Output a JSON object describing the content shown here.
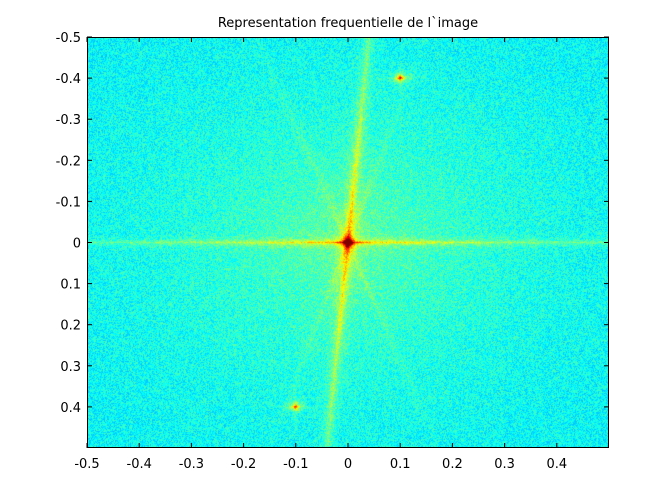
{
  "chart_data": {
    "type": "heatmap",
    "title": "Representation frequentielle de l`image",
    "xlabel": "",
    "ylabel": "",
    "xlim": [
      -0.5,
      0.5
    ],
    "ylim": [
      -0.5,
      0.5
    ],
    "y_axis_direction": "reversed",
    "x_ticks": [
      -0.5,
      -0.4,
      -0.3,
      -0.2,
      -0.1,
      0,
      0.1,
      0.2,
      0.3,
      0.4
    ],
    "x_tick_labels": [
      "-0.5",
      "-0.4",
      "-0.3",
      "-0.2",
      "-0.1",
      "0",
      "0.1",
      "0.2",
      "0.3",
      "0.4"
    ],
    "y_ticks": [
      -0.5,
      -0.4,
      -0.3,
      -0.2,
      -0.1,
      0,
      0.1,
      0.2,
      0.3,
      0.4
    ],
    "y_tick_labels": [
      "-0.5",
      "-0.4",
      "-0.3",
      "-0.2",
      "-0.1",
      "0",
      "0.1",
      "0.2",
      "0.3",
      "0.4"
    ],
    "colormap": "jet",
    "grid": false,
    "features": [
      {
        "kind": "peak",
        "fx": 0.0,
        "fy": 0.0,
        "intensity": 1.0
      },
      {
        "kind": "peak",
        "fx": 0.1,
        "fy": -0.4,
        "intensity": 0.8
      },
      {
        "kind": "peak",
        "fx": -0.1,
        "fy": 0.4,
        "intensity": 0.75
      },
      {
        "kind": "line",
        "fx": 0.0,
        "fy": 0.0,
        "orientation": "horizontal",
        "intensity": 0.55
      },
      {
        "kind": "line",
        "fx": 0.0,
        "fy": 0.0,
        "orientation": "vertical",
        "intensity": 0.7
      }
    ],
    "colors": {
      "background": "#1fa8e6",
      "plot_frame": "#000000"
    }
  }
}
